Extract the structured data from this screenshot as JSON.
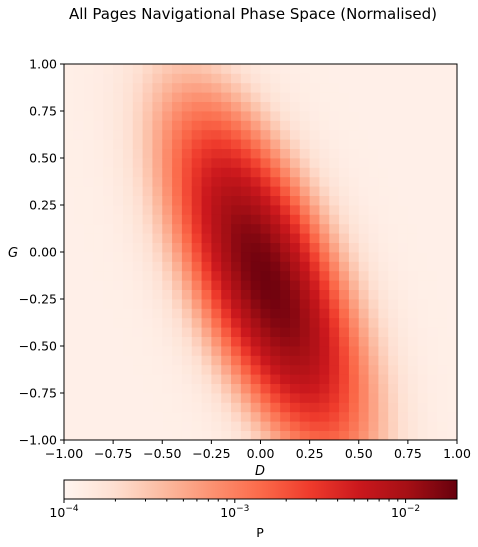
{
  "chart_data": {
    "type": "heatmap",
    "title": "All Pages Navigational Phase Space (Normalised)",
    "xlabel": "D",
    "ylabel": "G",
    "xlim": [
      -1.0,
      1.0
    ],
    "ylim": [
      -1.0,
      1.0
    ],
    "bins": 40,
    "x_ticks": [
      "−1.00",
      "−0.75",
      "−0.50",
      "−0.25",
      "0.00",
      "0.25",
      "0.50",
      "0.75",
      "1.00"
    ],
    "y_ticks": [
      "1.00",
      "0.75",
      "0.50",
      "0.25",
      "0.00",
      "−0.25",
      "−0.50",
      "−0.75",
      "−1.00"
    ],
    "x_tick_values": [
      -1.0,
      -0.75,
      -0.5,
      -0.25,
      0.0,
      0.25,
      0.5,
      0.75,
      1.0
    ],
    "y_tick_values": [
      1.0,
      0.75,
      0.5,
      0.25,
      0.0,
      -0.25,
      -0.5,
      -0.75,
      -1.0
    ],
    "color_scale": "log",
    "colormap": "Reds",
    "colorbar": {
      "label": "P",
      "range": [
        0.0001,
        0.02
      ],
      "ticks": [
        {
          "value": 0.0001,
          "base": "10",
          "exp": "−4"
        },
        {
          "value": 0.001,
          "base": "10",
          "exp": "−3"
        },
        {
          "value": 0.01,
          "base": "10",
          "exp": "−2"
        }
      ]
    },
    "density_model": {
      "description": "Estimated joint probability density of (D, G): a tilted elongated blob peaking near D≈0.03, G≈-0.15",
      "peak": 0.02,
      "center": [
        0.03,
        -0.15
      ],
      "background": 0.00012
    },
    "colors": {
      "low": "#fff5f0",
      "mid": "#fb6a4a",
      "high": "#67000d"
    }
  }
}
